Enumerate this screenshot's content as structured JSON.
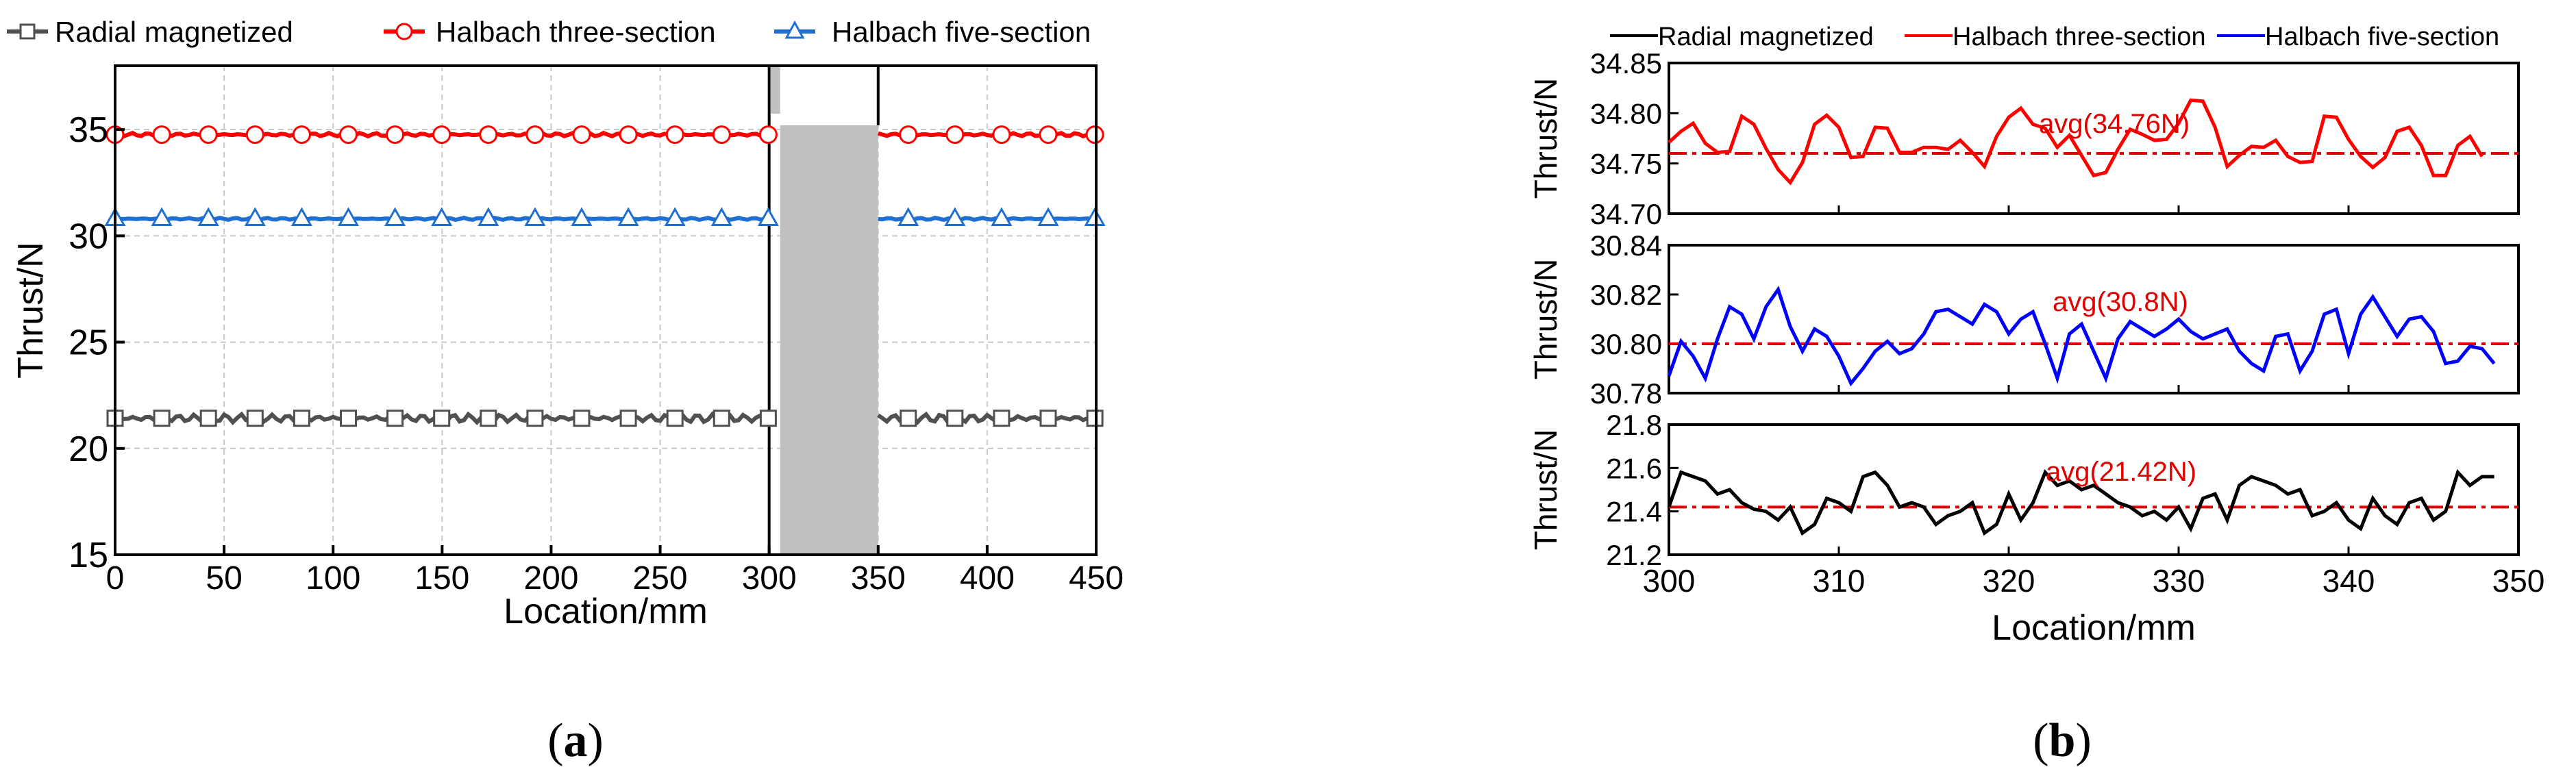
{
  "panels": {
    "a": {
      "caption_pre": "(",
      "caption": "a",
      "caption_post": ")",
      "chart_data": {
        "type": "line",
        "xlabel": "Location/mm",
        "ylabel": "Thrust/N",
        "xlim": [
          0,
          450
        ],
        "ylim": [
          15,
          38
        ],
        "xticks": [
          0,
          50,
          100,
          150,
          200,
          250,
          300,
          350,
          400,
          450
        ],
        "yticks": [
          15,
          20,
          25,
          30,
          35
        ],
        "grid": true,
        "legend": "top",
        "highlight": {
          "x0": 300,
          "x1": 350
        },
        "series": [
          {
            "name": "Radial magnetized",
            "color": "#505050",
            "marker": "square",
            "mean": 21.42,
            "amp": 0.12,
            "values_x": [
              0,
              450
            ]
          },
          {
            "name": "Halbach three-section",
            "color": "#ff0000",
            "marker": "circle",
            "mean": 34.76,
            "amp": 0.05,
            "values_x": [
              0,
              450
            ]
          },
          {
            "name": "Halbach five-section",
            "color": "#1f6fd0",
            "marker": "triangle",
            "mean": 30.8,
            "amp": 0.03,
            "values_x": [
              0,
              450
            ]
          }
        ]
      }
    },
    "b": {
      "caption_pre": "(",
      "caption": "b",
      "caption_post": ")",
      "legend": [
        {
          "name": "Radial magnetized",
          "color": "#000000"
        },
        {
          "name": "Halbach three-section",
          "color": "#ff0000"
        },
        {
          "name": "Halbach five-section",
          "color": "#0000ff"
        }
      ],
      "xlabel": "Location/mm",
      "xlim": [
        300,
        350
      ],
      "xticks": [
        300,
        310,
        320,
        330,
        340,
        350
      ],
      "chart_data": [
        {
          "type": "line",
          "name": "Halbach three-section",
          "ylabel": "Thrust/N",
          "color": "#ff0000",
          "ylim": [
            34.7,
            34.85
          ],
          "yticks": [
            "34.70",
            "34.75",
            "34.80",
            "34.85"
          ],
          "avg": 34.76,
          "avg_label": "avg(34.76N)",
          "x_start": 300,
          "x_step": 0.7143,
          "values": [
            34.771,
            34.782,
            34.79,
            34.77,
            34.761,
            34.762,
            34.797,
            34.789,
            34.765,
            34.744,
            34.731,
            34.751,
            34.789,
            34.798,
            34.786,
            34.756,
            34.757,
            34.786,
            34.785,
            34.761,
            34.761,
            34.766,
            34.766,
            34.764,
            34.773,
            34.761,
            34.747,
            34.777,
            34.796,
            34.805,
            34.789,
            34.785,
            34.766,
            34.778,
            34.758,
            34.738,
            34.741,
            34.764,
            34.784,
            34.779,
            34.773,
            34.774,
            34.79,
            34.813,
            34.812,
            34.786,
            34.747,
            34.758,
            34.767,
            34.766,
            34.773,
            34.757,
            34.751,
            34.752,
            34.797,
            34.796,
            34.774,
            34.757,
            34.746,
            34.756,
            34.782,
            34.786,
            34.768,
            34.738,
            34.738,
            34.768,
            34.777,
            34.757
          ]
        },
        {
          "type": "line",
          "name": "Halbach five-section",
          "ylabel": "Thrust/N",
          "color": "#0000ff",
          "ylim": [
            30.78,
            30.84
          ],
          "yticks": [
            "30.78",
            "30.80",
            "30.82",
            "30.84"
          ],
          "avg": 30.8,
          "avg_label": "avg(30.8N)",
          "x_start": 300,
          "x_step": 0.7143,
          "values": [
            30.787,
            30.801,
            30.795,
            30.786,
            30.802,
            30.815,
            30.812,
            30.802,
            30.815,
            30.822,
            30.807,
            30.797,
            30.806,
            30.803,
            30.795,
            30.784,
            30.79,
            30.797,
            30.801,
            30.796,
            30.798,
            30.804,
            30.813,
            30.814,
            30.811,
            30.808,
            30.816,
            30.813,
            30.804,
            30.81,
            30.813,
            30.8,
            30.786,
            30.804,
            30.808,
            30.797,
            30.786,
            30.802,
            30.809,
            30.806,
            30.803,
            30.806,
            30.81,
            30.805,
            30.802,
            30.804,
            30.806,
            30.797,
            30.792,
            30.789,
            30.803,
            30.804,
            30.789,
            30.797,
            30.812,
            30.814,
            30.796,
            30.812,
            30.819,
            30.811,
            30.803,
            30.81,
            30.811,
            30.805,
            30.792,
            30.793,
            30.799,
            30.798,
            30.792
          ]
        },
        {
          "type": "line",
          "name": "Radial magnetized",
          "ylabel": "Thrust/N",
          "color": "#000000",
          "ylim": [
            21.2,
            21.8
          ],
          "yticks": [
            "21.2",
            "21.4",
            "21.6",
            "21.8"
          ],
          "avg": 21.42,
          "avg_label": "avg(21.42N)",
          "x_start": 300,
          "x_step": 0.7143,
          "values": [
            21.42,
            21.58,
            21.56,
            21.54,
            21.48,
            21.5,
            21.44,
            21.41,
            21.4,
            21.36,
            21.42,
            21.3,
            21.34,
            21.46,
            21.44,
            21.4,
            21.56,
            21.58,
            21.52,
            21.42,
            21.44,
            21.42,
            21.34,
            21.38,
            21.4,
            21.44,
            21.3,
            21.34,
            21.48,
            21.36,
            21.44,
            21.58,
            21.52,
            21.54,
            21.5,
            21.52,
            21.48,
            21.44,
            21.42,
            21.38,
            21.4,
            21.36,
            21.42,
            21.32,
            21.46,
            21.48,
            21.36,
            21.52,
            21.56,
            21.54,
            21.52,
            21.48,
            21.5,
            21.38,
            21.4,
            21.44,
            21.36,
            21.32,
            21.46,
            21.38,
            21.34,
            21.44,
            21.46,
            21.36,
            21.4,
            21.58,
            21.52,
            21.56,
            21.56
          ]
        }
      ]
    }
  }
}
